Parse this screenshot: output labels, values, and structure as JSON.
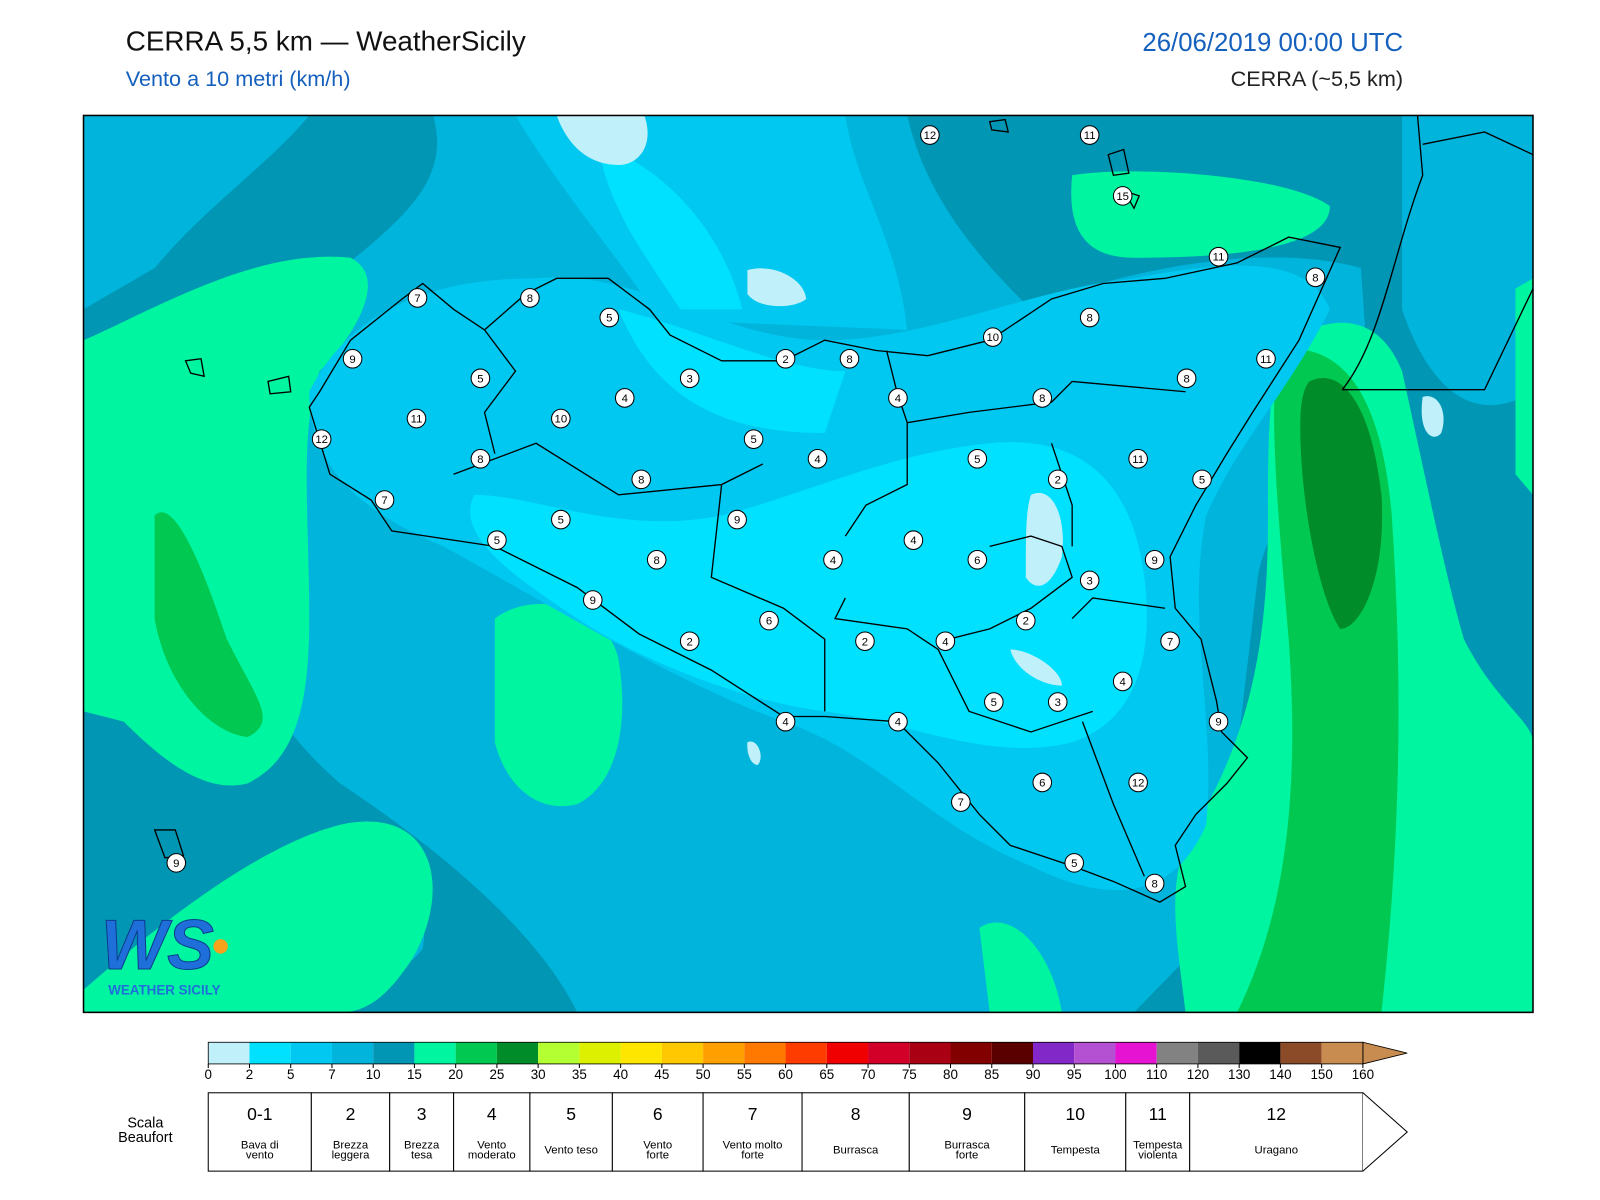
{
  "header": {
    "title": "CERRA 5,5 km — WeatherSicily",
    "subtitle": "Vento a 10 metri (km/h)",
    "datetime": "26/06/2019 00:00 UTC",
    "model": "CERRA (~5,5 km)"
  },
  "map": {
    "stations": [
      12,
      11,
      15,
      11,
      8,
      7,
      8,
      5,
      8,
      10,
      9,
      2,
      8,
      11,
      5,
      3,
      8,
      4,
      4,
      8,
      11,
      10,
      12,
      5,
      8,
      4,
      5,
      11,
      8,
      2,
      5,
      7,
      5,
      9,
      5,
      4,
      8,
      4,
      6,
      9,
      3,
      9,
      6,
      2,
      2,
      2,
      4,
      7,
      4,
      5,
      3,
      4,
      4,
      9,
      6,
      12,
      7,
      5,
      8,
      9
    ],
    "logo": {
      "initials": "WS",
      "name": "WEATHER SICILY"
    }
  },
  "colorbar": {
    "ticks": [
      0,
      2,
      5,
      7,
      10,
      15,
      20,
      25,
      30,
      35,
      40,
      45,
      50,
      55,
      60,
      65,
      70,
      75,
      80,
      85,
      90,
      95,
      100,
      110,
      120,
      130,
      140,
      150,
      160
    ],
    "colors": [
      "#c0f0fa",
      "#00e1ff",
      "#00c8f0",
      "#00b4dc",
      "#0096b4",
      "#00f5a0",
      "#00c850",
      "#008c28",
      "#b4ff32",
      "#dcf000",
      "#ffe600",
      "#ffc800",
      "#ffa000",
      "#ff7800",
      "#ff3c00",
      "#f00000",
      "#d20028",
      "#aa0014",
      "#820000",
      "#5a0000",
      "#8228c8",
      "#b450d2",
      "#e614d2",
      "#828282",
      "#5a5a5a",
      "#000000",
      "#8c4b28",
      "#c88c50"
    ]
  },
  "beaufort": {
    "label": [
      "Scala",
      "Beaufort"
    ],
    "levels": [
      {
        "force": "0-1",
        "description": [
          "Bava di",
          "vento"
        ]
      },
      {
        "force": 2,
        "description": [
          "Brezza",
          "leggera"
        ]
      },
      {
        "force": 3,
        "description": [
          "Brezza",
          "tesa"
        ]
      },
      {
        "force": 4,
        "description": [
          "Vento",
          "moderato"
        ]
      },
      {
        "force": 5,
        "description": [
          "Vento teso"
        ]
      },
      {
        "force": 6,
        "description": [
          "Vento",
          "forte"
        ]
      },
      {
        "force": 7,
        "description": [
          "Vento molto",
          "forte"
        ]
      },
      {
        "force": 8,
        "description": [
          "Burrasca"
        ]
      },
      {
        "force": 9,
        "description": [
          "Burrasca",
          "forte"
        ]
      },
      {
        "force": 10,
        "description": [
          "Tempesta"
        ]
      },
      {
        "force": 11,
        "description": [
          "Tempesta",
          "violenta"
        ]
      },
      {
        "force": 12,
        "description": [
          "Uragano"
        ]
      }
    ]
  }
}
